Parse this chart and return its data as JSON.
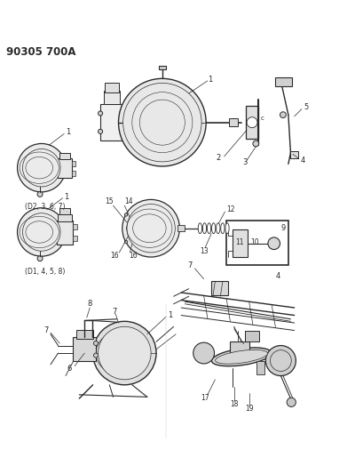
{
  "title": "90305 700A",
  "bg_color": "#ffffff",
  "line_color": "#2a2a2a",
  "fig_width": 4.0,
  "fig_height": 5.33,
  "dpi": 100,
  "caption_d2": "(D2, 3, 6, 7)",
  "caption_d1": "(D1, 4, 5, 8)"
}
